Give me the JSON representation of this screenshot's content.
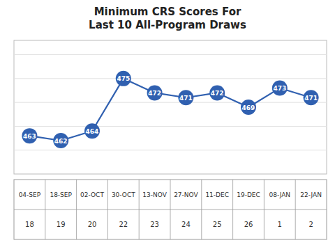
{
  "chart_data": {
    "type": "line",
    "title": "Minimum CRS Scores For\nLast 10 All-Program Draws",
    "categories": [
      [
        "04-SEP",
        "18"
      ],
      [
        "18-SEP",
        "19"
      ],
      [
        "02-OCT",
        "20"
      ],
      [
        "30-OCT",
        "22"
      ],
      [
        "13-NOV",
        "23"
      ],
      [
        "27-NOV",
        "24"
      ],
      [
        "11-DEC",
        "25"
      ],
      [
        "19-DEC",
        "26"
      ],
      [
        "08-JAN",
        "1"
      ],
      [
        "22-JAN",
        "2"
      ]
    ],
    "values": [
      463,
      462,
      464,
      475,
      472,
      471,
      472,
      469,
      473,
      471
    ],
    "color": "#3060B0",
    "marker": "circle",
    "ylim": [
      455,
      483
    ],
    "yticks": [
      460,
      465,
      470,
      475,
      480
    ],
    "grid": true,
    "tick_labels": "x",
    "data_labels": true
  }
}
